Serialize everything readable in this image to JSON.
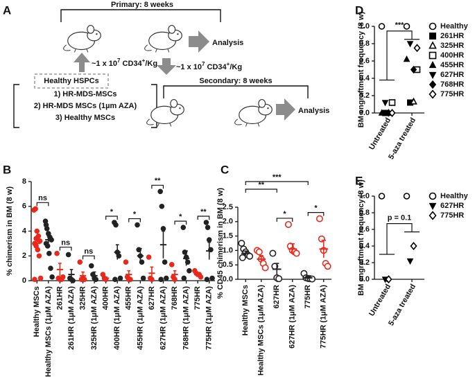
{
  "diagram": {
    "panel": "A",
    "primary": "Primary: 8 weeks",
    "secondary": "Secondary: 8 weeks",
    "analysis": [
      "Analysis",
      "Analysis"
    ],
    "dose": [
      "~1 x 10",
      "7",
      " CD34",
      "+",
      "/Kg"
    ],
    "donor": "Healthy HSPCs",
    "conditions": [
      "1) HR-MDS-MSCs",
      "2) HR-MDS MSCs (1µm AZA)",
      "3) Healthy MSCs"
    ]
  },
  "chart_data": [
    {
      "type": "dot",
      "panel": "B",
      "ylabel": "% chimerism in BM (8 w)",
      "marker": "circle-filled",
      "categories": [
        "Healthy MSCs",
        "Healthy MSCs (1μM AZA)",
        "261HR",
        "261HR (1μM AZA)",
        "325HR",
        "325HR (1μM AZA)",
        "400HR",
        "400HR (1μM AZA)",
        "455HR",
        "455HR (1μM AZA)",
        "627HR",
        "627HR (1μM AZA)",
        "768HR",
        "768HR (1μM AZA)",
        "775HR",
        "775HR (1μM AZA)"
      ],
      "colors": [
        "#e8291c",
        "#222222",
        "#e8291c",
        "#222222",
        "#e8291c",
        "#222222",
        "#e8291c",
        "#222222",
        "#e8291c",
        "#222222",
        "#e8291c",
        "#222222",
        "#e8291c",
        "#222222",
        "#e8291c",
        "#222222"
      ],
      "values": [
        [
          5.7,
          5.8,
          4,
          3.6,
          3.2,
          3,
          2.8,
          2.5,
          2,
          0.2,
          0.1,
          3.4
        ],
        [
          4.8,
          4.2,
          3.8,
          3.5,
          3.3,
          3,
          2.8,
          2.2,
          1,
          0.3,
          4.5
        ],
        [
          2.2,
          0.2,
          0.1,
          0.1,
          0.3
        ],
        [
          2.1,
          0.2,
          0.1,
          0
        ],
        [
          1.5,
          0.1,
          0.2,
          0.1
        ],
        [
          1.2,
          0.5,
          0.2,
          0.1
        ],
        [
          0.5,
          0.2,
          0.1
        ],
        [
          4.7,
          4.5,
          2.3,
          2,
          0.2,
          0.1
        ],
        [
          1.5,
          0.3,
          0.1,
          0.1
        ],
        [
          4.5,
          2.5,
          2,
          1.5,
          0.2
        ],
        [
          1.9,
          0.2,
          0.1
        ],
        [
          7.2,
          6,
          4.2,
          1.5,
          0.2,
          0.1
        ],
        [
          1.3,
          0.3,
          0.1
        ],
        [
          4.3,
          2.3,
          1.9,
          1.5,
          0.8,
          0.2
        ],
        [
          0.8,
          0.6,
          0.5,
          0.5,
          0.3
        ],
        [
          4.7,
          4.3,
          3.3,
          2.5,
          0.2,
          0.1
        ]
      ],
      "means": [
        3,
        3.3,
        0.9,
        0.5,
        0.4,
        0.4,
        0.2,
        2.3,
        0.5,
        2,
        0.6,
        2.9,
        0.5,
        1.8,
        0.5,
        2.4
      ],
      "sems": [
        0.4,
        0.3,
        0.5,
        0.4,
        0.3,
        0.3,
        0.1,
        0.6,
        0.3,
        0.6,
        0.5,
        1.1,
        0.3,
        0.6,
        0.1,
        0.7
      ],
      "significance": [
        "ns",
        "ns",
        "ns",
        "*",
        "*",
        "**",
        "*",
        "**"
      ],
      "ylim": [
        0,
        8
      ],
      "yticks": [
        0,
        2,
        4,
        6,
        8
      ]
    },
    {
      "type": "dot",
      "panel": "C",
      "ylabel": "% CD45 chimerism in BM (8 w)",
      "marker": "circle-open",
      "categories": [
        "Healthy MSCs",
        "Healthy MSCs (1μM AZA)",
        "627HR",
        "627HR (1μM AZA)",
        "775HR",
        "775HR (1μM AZA)"
      ],
      "colors": [
        "#222222",
        "#e8291c",
        "#222222",
        "#e8291c",
        "#222222",
        "#e8291c"
      ],
      "values": [
        [
          1.25,
          1.05,
          0.95,
          0.85,
          0.8,
          0.75
        ],
        [
          1,
          0.95,
          0.7,
          0.55,
          0.4
        ],
        [
          0.9,
          0.45,
          0.05,
          0.02
        ],
        [
          1.9,
          1.15,
          1,
          0.95,
          0.9
        ],
        [
          0.2,
          0.05,
          0.03,
          0.02,
          0.01
        ],
        [
          2.1,
          1.4,
          1,
          0.55,
          0.45
        ]
      ],
      "means": [
        0.9,
        0.7,
        0.35,
        1.05,
        0.05,
        1.05
      ],
      "sems": [
        0.08,
        0.12,
        0.2,
        0.18,
        0.04,
        0.3
      ],
      "significance": [
        "**",
        "***",
        "*",
        "*"
      ],
      "ylim": [
        0,
        2.5
      ],
      "yticks": [
        {
          "value": 0,
          "label": "0.0"
        },
        {
          "value": 0.5,
          "label": "0.5"
        },
        {
          "value": 1,
          "label": "1.0"
        },
        {
          "value": 1.5,
          "label": "1.5"
        },
        {
          "value": 2,
          "label": "2.0"
        },
        {
          "value": 2.5,
          "label": "2.5"
        }
      ]
    },
    {
      "type": "paired-scatter",
      "panel": "D",
      "ylabel": "BM engraftment frequency (8 w)",
      "color": "#000000",
      "categories": [
        "Untreated",
        "5-aza treated"
      ],
      "series": [
        {
          "name": "Healthy",
          "marker": "circle-open",
          "values": [
            1,
            1
          ]
        },
        {
          "name": "261HR",
          "marker": "square-filled",
          "values": [
            0,
            0.12
          ]
        },
        {
          "name": "325HR",
          "marker": "triangle-open",
          "values": [
            0,
            0.13
          ]
        },
        {
          "name": "400HR",
          "marker": "square-open",
          "values": [
            0.12,
            0.5
          ]
        },
        {
          "name": "455HR",
          "marker": "triangle-filled",
          "values": [
            0,
            0.62
          ]
        },
        {
          "name": "627HR",
          "marker": "triangle-down-filled",
          "values": [
            0.12,
            0.8
          ]
        },
        {
          "name": "768HR",
          "marker": "diamond-filled",
          "values": [
            0,
            0.5
          ]
        },
        {
          "name": "775HR",
          "marker": "diamond-open",
          "values": [
            0,
            0.75
          ]
        }
      ],
      "means": [
        0.38,
        0.85
      ],
      "significance": "***",
      "ylim": [
        0,
        1
      ],
      "yticks": [
        {
          "value": 0,
          "label": "0.0"
        },
        {
          "value": 0.2,
          "label": "0.2"
        },
        {
          "value": 0.4,
          "label": "0.4"
        },
        {
          "value": 0.6,
          "label": "0.6"
        },
        {
          "value": 0.8,
          "label": "0.8"
        },
        {
          "value": 1,
          "label": "1.0"
        }
      ]
    },
    {
      "type": "paired-scatter",
      "panel": "E",
      "ylabel": "BM engraftment frequency (8 w)",
      "color": "#000000",
      "categories": [
        "Untreated",
        "5-aza treated"
      ],
      "series": [
        {
          "name": "Healthy",
          "marker": "circle-open",
          "values": [
            1,
            1
          ]
        },
        {
          "name": "627HR",
          "marker": "triangle-down-filled",
          "values": [
            0,
            0.22
          ]
        },
        {
          "name": "775HR",
          "marker": "diamond-open",
          "values": [
            0,
            0.4
          ]
        }
      ],
      "means": [
        0.3,
        0.57
      ],
      "significance": "p = 0.1",
      "ylim": [
        0,
        1
      ],
      "yticks": [
        {
          "value": 0,
          "label": "0.0"
        },
        {
          "value": 0.2,
          "label": "0.2"
        },
        {
          "value": 0.4,
          "label": "0.4"
        },
        {
          "value": 0.6,
          "label": "0.6"
        },
        {
          "value": 0.8,
          "label": "0.8"
        },
        {
          "value": 1,
          "label": "1.0"
        }
      ]
    }
  ]
}
